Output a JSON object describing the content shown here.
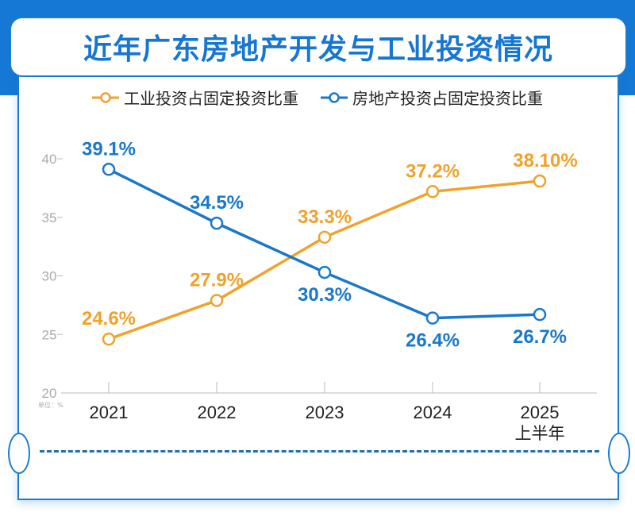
{
  "title": "近年广东房地产开发与工业投资情况",
  "unit_label": "单位：%",
  "colors": {
    "industrial": "#f0a22a",
    "realestate": "#1a78c8",
    "frame": "#1a7bd0"
  },
  "chart_data": {
    "type": "line",
    "categories": [
      "2021",
      "2022",
      "2023",
      "2024",
      "2025"
    ],
    "category_sublabels": [
      "",
      "",
      "",
      "",
      "上半年"
    ],
    "ylim": [
      20,
      40
    ],
    "yticks": [
      20,
      25,
      30,
      35,
      40
    ],
    "legend_position": "top",
    "grid": false,
    "series": [
      {
        "name": "工业投资占固定投资比重",
        "values": [
          24.6,
          27.9,
          33.3,
          37.2,
          38.1
        ],
        "labels": [
          "24.6%",
          "27.9%",
          "33.3%",
          "37.2%",
          "38.10%"
        ]
      },
      {
        "name": "房地产投资占固定投资比重",
        "values": [
          39.1,
          34.5,
          30.3,
          26.4,
          26.7
        ],
        "labels": [
          "39.1%",
          "34.5%",
          "30.3%",
          "26.4%",
          "26.7%"
        ]
      }
    ]
  }
}
